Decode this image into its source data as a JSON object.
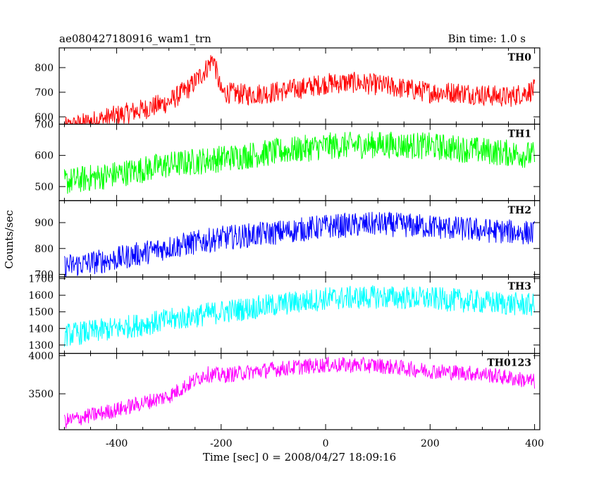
{
  "chart_data": {
    "type": "line",
    "title_left": "ae080427180916_wam1_trn",
    "title_right": "Bin time: 1.0 s",
    "xlabel": "Time [sec] 0 = 2008/04/27 18:09:16",
    "ylabel": "Counts/sec",
    "xlim": [
      -510,
      410
    ],
    "xticks": [
      -400,
      -200,
      0,
      200,
      400
    ],
    "grid": false,
    "panels": [
      {
        "name": "TH0",
        "color": "#ff0000",
        "ylim": [
          570,
          880
        ],
        "yticks": [
          600,
          700,
          800
        ],
        "trend": [
          [
            -500,
            555
          ],
          [
            -450,
            580
          ],
          [
            -400,
            605
          ],
          [
            -350,
            630
          ],
          [
            -300,
            660
          ],
          [
            -260,
            720
          ],
          [
            -230,
            790
          ],
          [
            -215,
            840
          ],
          [
            -200,
            700
          ],
          [
            -150,
            690
          ],
          [
            -100,
            700
          ],
          [
            -50,
            715
          ],
          [
            0,
            735
          ],
          [
            50,
            740
          ],
          [
            100,
            730
          ],
          [
            150,
            715
          ],
          [
            200,
            700
          ],
          [
            250,
            700
          ],
          [
            300,
            690
          ],
          [
            350,
            680
          ],
          [
            400,
            710
          ]
        ],
        "noise": 55
      },
      {
        "name": "TH1",
        "color": "#00ff00",
        "ylim": [
          455,
          700
        ],
        "yticks": [
          500,
          600,
          700
        ],
        "trend": [
          [
            -500,
            515
          ],
          [
            -400,
            540
          ],
          [
            -300,
            570
          ],
          [
            -200,
            590
          ],
          [
            -100,
            610
          ],
          [
            0,
            630
          ],
          [
            100,
            635
          ],
          [
            200,
            630
          ],
          [
            300,
            615
          ],
          [
            400,
            600
          ]
        ],
        "noise": 55
      },
      {
        "name": "TH2",
        "color": "#0000ff",
        "ylim": [
          690,
          985
        ],
        "yticks": [
          700,
          800,
          900
        ],
        "trend": [
          [
            -500,
            730
          ],
          [
            -400,
            760
          ],
          [
            -300,
            805
          ],
          [
            -200,
            840
          ],
          [
            -100,
            860
          ],
          [
            0,
            885
          ],
          [
            100,
            895
          ],
          [
            200,
            885
          ],
          [
            300,
            870
          ],
          [
            400,
            860
          ]
        ],
        "noise": 60
      },
      {
        "name": "TH3",
        "color": "#00ffff",
        "ylim": [
          1250,
          1710
        ],
        "yticks": [
          1300,
          1400,
          1500,
          1600,
          1700
        ],
        "trend": [
          [
            -500,
            1360
          ],
          [
            -400,
            1400
          ],
          [
            -300,
            1450
          ],
          [
            -200,
            1500
          ],
          [
            -100,
            1540
          ],
          [
            0,
            1580
          ],
          [
            100,
            1590
          ],
          [
            200,
            1580
          ],
          [
            300,
            1560
          ],
          [
            400,
            1540
          ]
        ],
        "noise": 90
      },
      {
        "name": "TH0123",
        "color": "#ff00ff",
        "ylim": [
          3030,
          4030
        ],
        "yticks": [
          3500,
          4000
        ],
        "trend": [
          [
            -500,
            3140
          ],
          [
            -400,
            3290
          ],
          [
            -300,
            3470
          ],
          [
            -230,
            3760
          ],
          [
            -200,
            3740
          ],
          [
            -100,
            3820
          ],
          [
            0,
            3880
          ],
          [
            100,
            3870
          ],
          [
            200,
            3800
          ],
          [
            300,
            3760
          ],
          [
            400,
            3660
          ]
        ],
        "noise": 130
      }
    ]
  }
}
